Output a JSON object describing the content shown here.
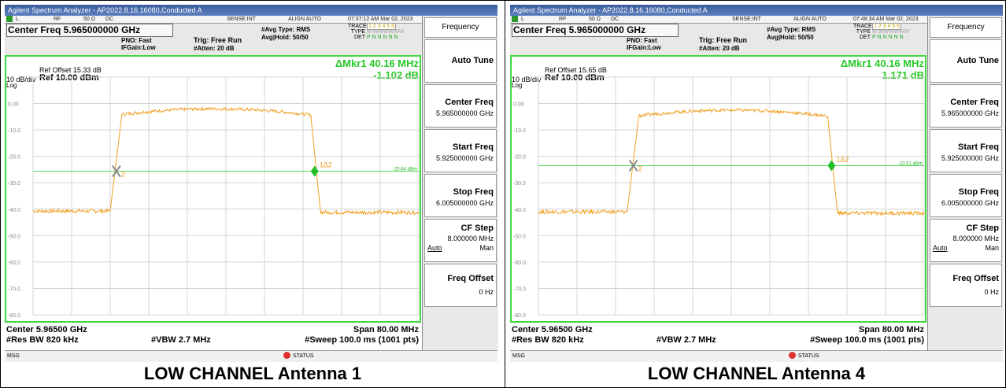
{
  "panels": [
    {
      "window_title": "Agilent Spectrum Analyzer - AP2022.8.16.16080,Conducted A",
      "status": {
        "rf": "RF",
        "ohm": "50 Ω",
        "dc": "DC",
        "sense": "SENSE:INT",
        "align": "ALIGN AUTO",
        "time": "07:37:12 AM Mar 02, 2023"
      },
      "center_freq_label": "Center Freq 5.965000000 GHz",
      "pno": "PNO: Fast",
      "ifgain": "IFGain:Low",
      "trig": "Trig: Free Run",
      "atten": "#Atten: 20 dB",
      "avg_type": "#Avg Type: RMS",
      "avg_hold": "Avg|Hold: 50/50",
      "trace_label": "TRACE",
      "trace_nums": "1 2 3 4 5 6",
      "type_label": "TYPE",
      "type_val": "M WWWWWW",
      "det_label": "DET",
      "det_val": "P N N N N N",
      "ref_offset": "Ref Offset 15.33 dB",
      "scale": "10 dB/div",
      "ref_level": "Ref 10.00 dBm",
      "log": "Log",
      "marker_delta": "ΔMkr1 40.16 MHz",
      "marker_value": "-1.102 dB",
      "y_ticks": [
        "0.00",
        "-10.0",
        "-20.0",
        "-30.0",
        "-40.0",
        "-50.0",
        "-60.0",
        "-70.0",
        "-80.0"
      ],
      "display_line_label": "-25.64 dBm",
      "marker1_label": "1Δ2",
      "marker2_label": "2",
      "footer_center": "Center 5.96500 GHz",
      "footer_span": "Span 80.00 MHz",
      "footer_rbw": "#Res BW 820 kHz",
      "footer_vbw": "#VBW 2.7 MHz",
      "footer_sweep": "#Sweep  100.0 ms (1001 pts)",
      "msg_label": "MSG",
      "status_label": "STATUS",
      "softkeys": {
        "menu_title": "Frequency",
        "auto_tune": "Auto Tune",
        "center_freq": "Center Freq",
        "center_freq_val": "5.965000000 GHz",
        "start_freq": "Start Freq",
        "start_freq_val": "5.925000000 GHz",
        "stop_freq": "Stop Freq",
        "stop_freq_val": "6.005000000 GHz",
        "cf_step": "CF Step",
        "cf_step_val": "8.000000 MHz",
        "auto": "Auto",
        "man": "Man",
        "freq_offset": "Freq Offset",
        "freq_offset_val": "0 Hz"
      },
      "caption": "LOW CHANNEL Antenna 1",
      "trace": {
        "noise_floor": -40.7,
        "plateau": -1.5,
        "rise_left_freq_frac": 0.21,
        "rise_right_freq_frac": 0.73,
        "display_line": -25.64
      }
    },
    {
      "window_title": "Agilent Spectrum Analyzer - AP2022.8.16.16080,Conducted A",
      "status": {
        "rf": "RF",
        "ohm": "50 Ω",
        "dc": "DC",
        "sense": "SENSE:INT",
        "align": "ALIGN AUTO",
        "time": "07:48:34 AM Mar 02, 2023"
      },
      "center_freq_label": "Center Freq 5.965000000 GHz",
      "pno": "PNO: Fast",
      "ifgain": "IFGain:Low",
      "trig": "Trig: Free Run",
      "atten": "#Atten: 20 dB",
      "avg_type": "#Avg Type: RMS",
      "avg_hold": "Avg|Hold: 50/50",
      "trace_label": "TRACE",
      "trace_nums": "1 2 3 4 5 6",
      "type_label": "TYPE",
      "type_val": "M WWWWWW",
      "det_label": "DET",
      "det_val": "P N N N N N",
      "ref_offset": "Ref Offset 15.65 dB",
      "scale": "10 dB/div",
      "ref_level": "Ref 10.00 dBm",
      "log": "Log",
      "marker_delta": "ΔMkr1 40.16 MHz",
      "marker_value": "1.171 dB",
      "y_ticks": [
        "0.00",
        "-10.0",
        "-20.0",
        "-30.0",
        "-40.0",
        "-50.0",
        "-60.0",
        "-70.0",
        "-80.0"
      ],
      "display_line_label": "-23.51 dBm",
      "marker1_label": "1Δ2",
      "marker2_label": "2",
      "footer_center": "Center 5.96500 GHz",
      "footer_span": "Span 80.00 MHz",
      "footer_rbw": "#Res BW 820 kHz",
      "footer_vbw": "#VBW 2.7 MHz",
      "footer_sweep": "#Sweep  100.0 ms (1001 pts)",
      "msg_label": "MSG",
      "status_label": "STATUS",
      "softkeys": {
        "menu_title": "Frequency",
        "auto_tune": "Auto Tune",
        "center_freq": "Center Freq",
        "center_freq_val": "5.965000000 GHz",
        "start_freq": "Start Freq",
        "start_freq_val": "5.925000000 GHz",
        "stop_freq": "Stop Freq",
        "stop_freq_val": "6.005000000 GHz",
        "cf_step": "CF Step",
        "cf_step_val": "8.000000 MHz",
        "auto": "Auto",
        "man": "Man",
        "freq_offset": "Freq Offset",
        "freq_offset_val": "0 Hz"
      },
      "caption": "LOW CHANNEL Antenna 4",
      "trace": {
        "noise_floor": -41.0,
        "plateau": -2.0,
        "rise_left_freq_frac": 0.24,
        "rise_right_freq_frac": 0.76,
        "display_line": -23.51
      }
    }
  ],
  "colors": {
    "trace": "#f0a020",
    "graticule": "#d4d4d4",
    "frame": "#3fd83f",
    "marker": "#22c02a",
    "display_line": "#56d856",
    "titlebar": "#4a6fb0"
  }
}
